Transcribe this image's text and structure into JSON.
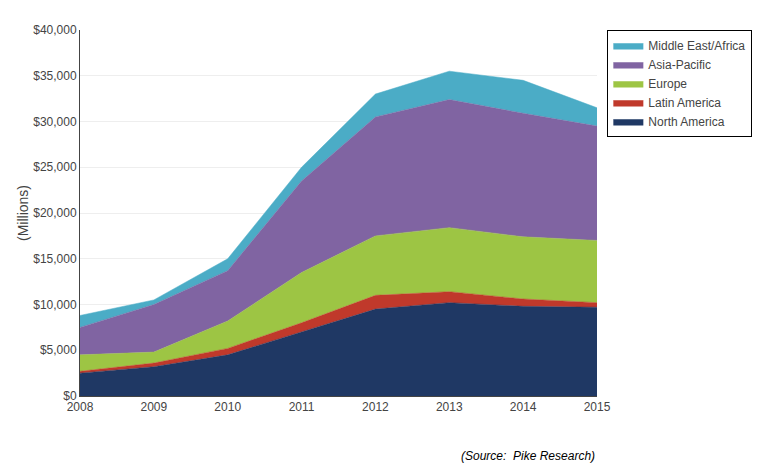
{
  "chart_data": {
    "type": "area",
    "stacked": true,
    "x": [
      2008,
      2009,
      2010,
      2011,
      2012,
      2013,
      2014,
      2015
    ],
    "series": [
      {
        "name": "North America",
        "color": "#1F3864",
        "values": [
          2500,
          3200,
          4500,
          7000,
          9500,
          10200,
          9800,
          9700
        ]
      },
      {
        "name": "Latin America",
        "color": "#C0392B",
        "values": [
          200,
          400,
          700,
          1000,
          1500,
          1200,
          800,
          500
        ]
      },
      {
        "name": "Europe",
        "color": "#9DC544",
        "values": [
          1800,
          1200,
          3000,
          5500,
          6500,
          7000,
          6800,
          6800
        ]
      },
      {
        "name": "Asia-Pacific",
        "color": "#8064A2",
        "values": [
          3000,
          5200,
          5500,
          10000,
          13000,
          14000,
          13500,
          12500
        ]
      },
      {
        "name": "Middle East/Africa",
        "color": "#4BACC6",
        "values": [
          1300,
          500,
          1300,
          1500,
          2500,
          3100,
          3600,
          2000
        ]
      }
    ],
    "ylabel": "(Millions)",
    "annotation": "(Source:  Pike Research)",
    "xlim": [
      2008,
      2015
    ],
    "xticks": [
      2008,
      2009,
      2010,
      2011,
      2012,
      2013,
      2014,
      2015
    ],
    "ylim": [
      0,
      40000
    ],
    "yticks": [
      {
        "value": 0,
        "label": "$0"
      },
      {
        "value": 5000,
        "label": "$5,000"
      },
      {
        "value": 10000,
        "label": "$10,000"
      },
      {
        "value": 15000,
        "label": "$15,000"
      },
      {
        "value": 20000,
        "label": "$20,000"
      },
      {
        "value": 25000,
        "label": "$25,000"
      },
      {
        "value": 30000,
        "label": "$30,000"
      },
      {
        "value": 35000,
        "label": "$35,000"
      },
      {
        "value": 40000,
        "label": "$40,000"
      }
    ],
    "grid": true,
    "legend": "right"
  }
}
